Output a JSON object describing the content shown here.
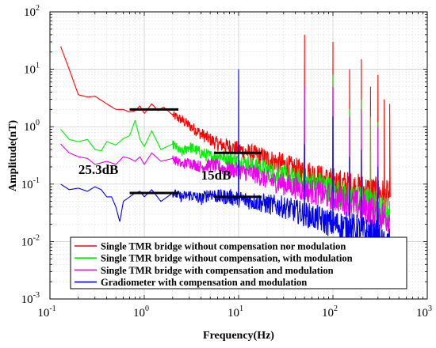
{
  "chart_data": {
    "type": "line",
    "title": "",
    "xlabel": "Frequency(Hz)",
    "ylabel": "Amplitude(nT)",
    "xscale": "log",
    "yscale": "log",
    "xlim": [
      0.1,
      1000
    ],
    "ylim": [
      0.001,
      100
    ],
    "x_ticks": [
      {
        "base": "10",
        "exp": "-1",
        "value": 0.1
      },
      {
        "base": "10",
        "exp": "0",
        "value": 1
      },
      {
        "base": "10",
        "exp": "1",
        "value": 10
      },
      {
        "base": "10",
        "exp": "2",
        "value": 100
      },
      {
        "base": "10",
        "exp": "3",
        "value": 1000
      }
    ],
    "y_ticks": [
      {
        "base": "10",
        "exp": "-3",
        "value": 0.001
      },
      {
        "base": "10",
        "exp": "-2",
        "value": 0.01
      },
      {
        "base": "10",
        "exp": "-1",
        "value": 0.1
      },
      {
        "base": "10",
        "exp": "0",
        "value": 1
      },
      {
        "base": "10",
        "exp": "1",
        "value": 10
      },
      {
        "base": "10",
        "exp": "2",
        "value": 100
      }
    ],
    "grid": true,
    "legend_position": "bottom",
    "series": [
      {
        "name": "Single TMR bridge without compensation nor modulation",
        "color": "#ff0000",
        "x": [
          0.13,
          0.16,
          0.2,
          0.25,
          0.3,
          0.4,
          0.5,
          0.6,
          0.7,
          0.8,
          0.9,
          1.0,
          1.2,
          1.4,
          1.6,
          2.0,
          2.5,
          3.0,
          4.0,
          5.0,
          6.0,
          8.0,
          10,
          12,
          15,
          20,
          30,
          40,
          60,
          80,
          100,
          150,
          200,
          300,
          400
        ],
        "y": [
          25,
          10,
          3.6,
          3.3,
          3.4,
          2.5,
          2.0,
          2.0,
          1.8,
          1.9,
          2.3,
          1.7,
          2.5,
          1.9,
          2.2,
          1.6,
          1.3,
          1.05,
          0.75,
          0.6,
          0.5,
          0.45,
          0.4,
          0.36,
          0.33,
          0.28,
          0.22,
          0.18,
          0.15,
          0.12,
          0.11,
          0.09,
          0.08,
          0.07,
          0.06
        ],
        "peaks": [
          {
            "x": 50,
            "y": 40
          },
          {
            "x": 100,
            "y": 30
          },
          {
            "x": 150,
            "y": 10
          },
          {
            "x": 200,
            "y": 15
          },
          {
            "x": 250,
            "y": 5
          },
          {
            "x": 300,
            "y": 8
          },
          {
            "x": 350,
            "y": 3
          },
          {
            "x": 400,
            "y": 2.5
          }
        ]
      },
      {
        "name": "Single TMR bridge without compensation, with modulation",
        "color": "#00ee00",
        "x": [
          0.13,
          0.16,
          0.2,
          0.25,
          0.3,
          0.35,
          0.4,
          0.5,
          0.6,
          0.7,
          0.8,
          0.9,
          1.0,
          1.2,
          1.5,
          2.0,
          2.5,
          3.0,
          4.0,
          5.0,
          6.0,
          8.0,
          10,
          15,
          20,
          30,
          50,
          70,
          100,
          150,
          200,
          300,
          400
        ],
        "y": [
          0.9,
          0.6,
          0.55,
          0.6,
          0.4,
          0.38,
          0.55,
          0.48,
          0.62,
          0.7,
          1.3,
          0.6,
          0.45,
          0.85,
          0.4,
          0.5,
          0.35,
          0.45,
          0.35,
          0.3,
          0.32,
          0.28,
          0.26,
          0.2,
          0.18,
          0.14,
          0.11,
          0.1,
          0.08,
          0.06,
          0.05,
          0.04,
          0.03
        ],
        "peaks": [
          {
            "x": 50,
            "y": 4
          },
          {
            "x": 100,
            "y": 8
          },
          {
            "x": 150,
            "y": 2
          },
          {
            "x": 200,
            "y": 3
          },
          {
            "x": 250,
            "y": 1.5
          },
          {
            "x": 300,
            "y": 1.2
          }
        ]
      },
      {
        "name": "Single TMR bridge with compensation and modulation",
        "color": "#ee00ee",
        "x": [
          0.13,
          0.16,
          0.2,
          0.25,
          0.3,
          0.4,
          0.5,
          0.6,
          0.7,
          0.8,
          0.9,
          1.0,
          1.2,
          1.5,
          2.0,
          2.5,
          3.0,
          4.0,
          5.0,
          6.0,
          8.0,
          10,
          15,
          20,
          30,
          50,
          70,
          100,
          150,
          200,
          300,
          400
        ],
        "y": [
          0.5,
          0.35,
          0.3,
          0.28,
          0.22,
          0.25,
          0.22,
          0.3,
          0.28,
          0.25,
          0.3,
          0.22,
          0.35,
          0.25,
          0.28,
          0.22,
          0.24,
          0.2,
          0.22,
          0.2,
          0.18,
          0.17,
          0.15,
          0.12,
          0.1,
          0.08,
          0.07,
          0.06,
          0.05,
          0.04,
          0.03,
          0.025
        ],
        "peaks": [
          {
            "x": 50,
            "y": 5
          },
          {
            "x": 100,
            "y": 5
          },
          {
            "x": 150,
            "y": 1.5
          },
          {
            "x": 200,
            "y": 2
          },
          {
            "x": 300,
            "y": 1
          }
        ]
      },
      {
        "name": "Gradiometer with compensation and modulation",
        "color": "#0000ee",
        "x": [
          0.13,
          0.16,
          0.2,
          0.25,
          0.3,
          0.35,
          0.4,
          0.45,
          0.5,
          0.55,
          0.6,
          0.7,
          0.8,
          0.9,
          1.0,
          1.2,
          1.5,
          2.0,
          2.5,
          3.0,
          4.0,
          5.0,
          6.0,
          8.0,
          10,
          15,
          20,
          30,
          50,
          70,
          100,
          150,
          200,
          300,
          350,
          400
        ],
        "y": [
          0.1,
          0.08,
          0.085,
          0.075,
          0.09,
          0.08,
          0.06,
          0.06,
          0.04,
          0.022,
          0.05,
          0.06,
          0.07,
          0.075,
          0.06,
          0.08,
          0.05,
          0.07,
          0.06,
          0.065,
          0.055,
          0.07,
          0.06,
          0.06,
          0.055,
          0.05,
          0.045,
          0.04,
          0.03,
          0.025,
          0.02,
          0.018,
          0.015,
          0.012,
          0.008,
          0.01
        ],
        "peaks": [
          {
            "x": 10,
            "y": 10
          },
          {
            "x": 50,
            "y": 0.5
          },
          {
            "x": 100,
            "y": 1.5
          },
          {
            "x": 150,
            "y": 0.3
          },
          {
            "x": 200,
            "y": 0.4
          },
          {
            "x": 300,
            "y": 0.2
          }
        ]
      }
    ],
    "reference_lines": [
      {
        "x1": 0.7,
        "x2": 2.3,
        "y": 2.0
      },
      {
        "x1": 5.5,
        "x2": 17.5,
        "y": 0.35
      },
      {
        "x1": 0.7,
        "x2": 2.3,
        "y": 0.07
      },
      {
        "x1": 5.5,
        "x2": 17.5,
        "y": 0.06
      }
    ],
    "annotations": [
      {
        "text": "25.3dB",
        "x": 0.2,
        "y": 0.15
      },
      {
        "text": "15dB",
        "x": 4.0,
        "y": 0.12
      }
    ]
  }
}
